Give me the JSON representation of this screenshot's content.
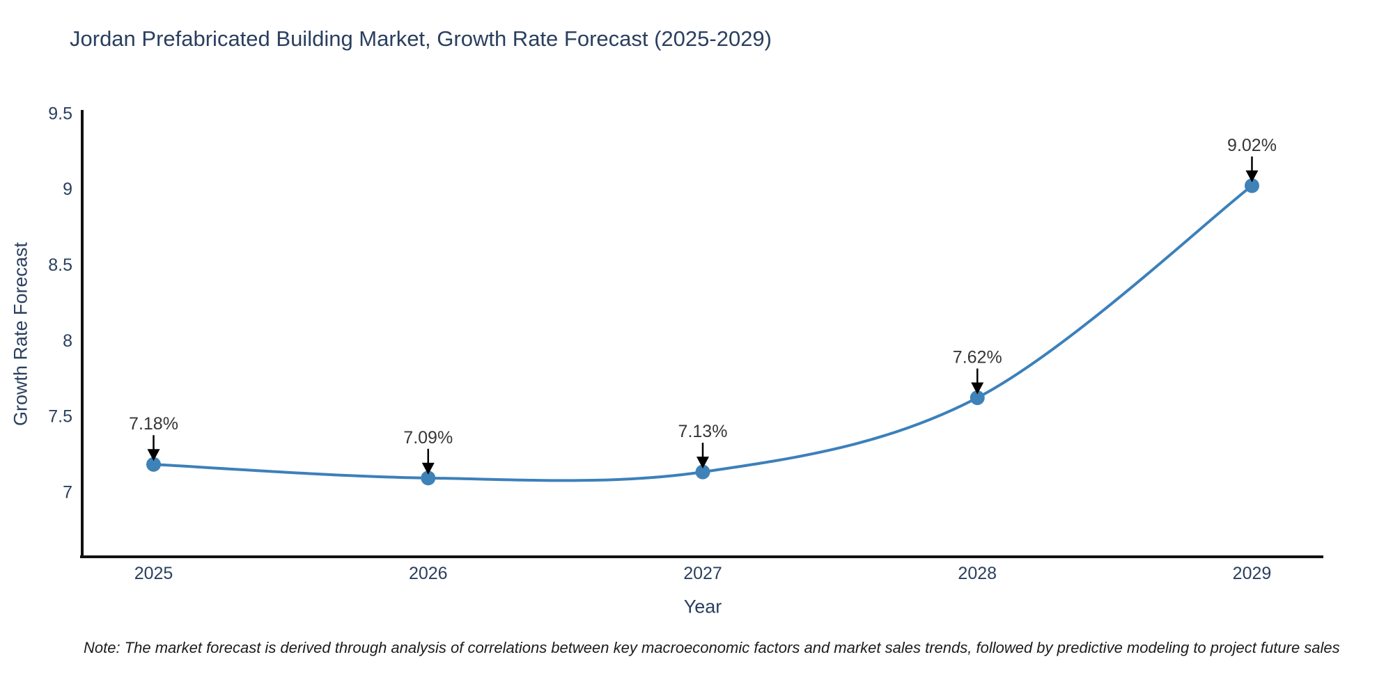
{
  "page": {
    "title": "Jordan Prefabricated Building Market, Growth Rate Forecast (2025-2029)",
    "note": "Note: The market forecast is derived through analysis of correlations between key macroeconomic factors and market sales trends, followed by predictive modeling to project future sales"
  },
  "chart_data": {
    "type": "line",
    "title": "Jordan Prefabricated Building Market, Growth Rate Forecast (2025-2029)",
    "xlabel": "Year",
    "ylabel": "Growth Rate Forecast",
    "x": [
      2025,
      2026,
      2027,
      2028,
      2029
    ],
    "series": [
      {
        "name": "Growth Rate Forecast",
        "values": [
          7.18,
          7.09,
          7.13,
          7.62,
          9.02
        ]
      }
    ],
    "point_labels": [
      "7.18%",
      "7.09%",
      "7.13%",
      "7.62%",
      "9.02%"
    ],
    "x_tick_labels": [
      "2025",
      "2026",
      "2027",
      "2028",
      "2029"
    ],
    "y_tick_labels": [
      "9.5",
      "9",
      "8.5",
      "8",
      "7.5",
      "7"
    ],
    "y_tick_values": [
      9.5,
      9.0,
      8.5,
      8.0,
      7.5,
      7.0
    ],
    "ylim": [
      6.57,
      9.52
    ],
    "xlim": [
      2024.74,
      2029.26
    ],
    "grid": false,
    "legend_position": "none",
    "line_shape": "spline",
    "colors": {
      "line": "#3c80ba",
      "marker": "#3f82b8",
      "axis": "#111111",
      "tick_text": "#2a3f5f",
      "annotation_text": "#363636",
      "arrow": "#000000",
      "title_text": "#2a3f5f"
    }
  }
}
